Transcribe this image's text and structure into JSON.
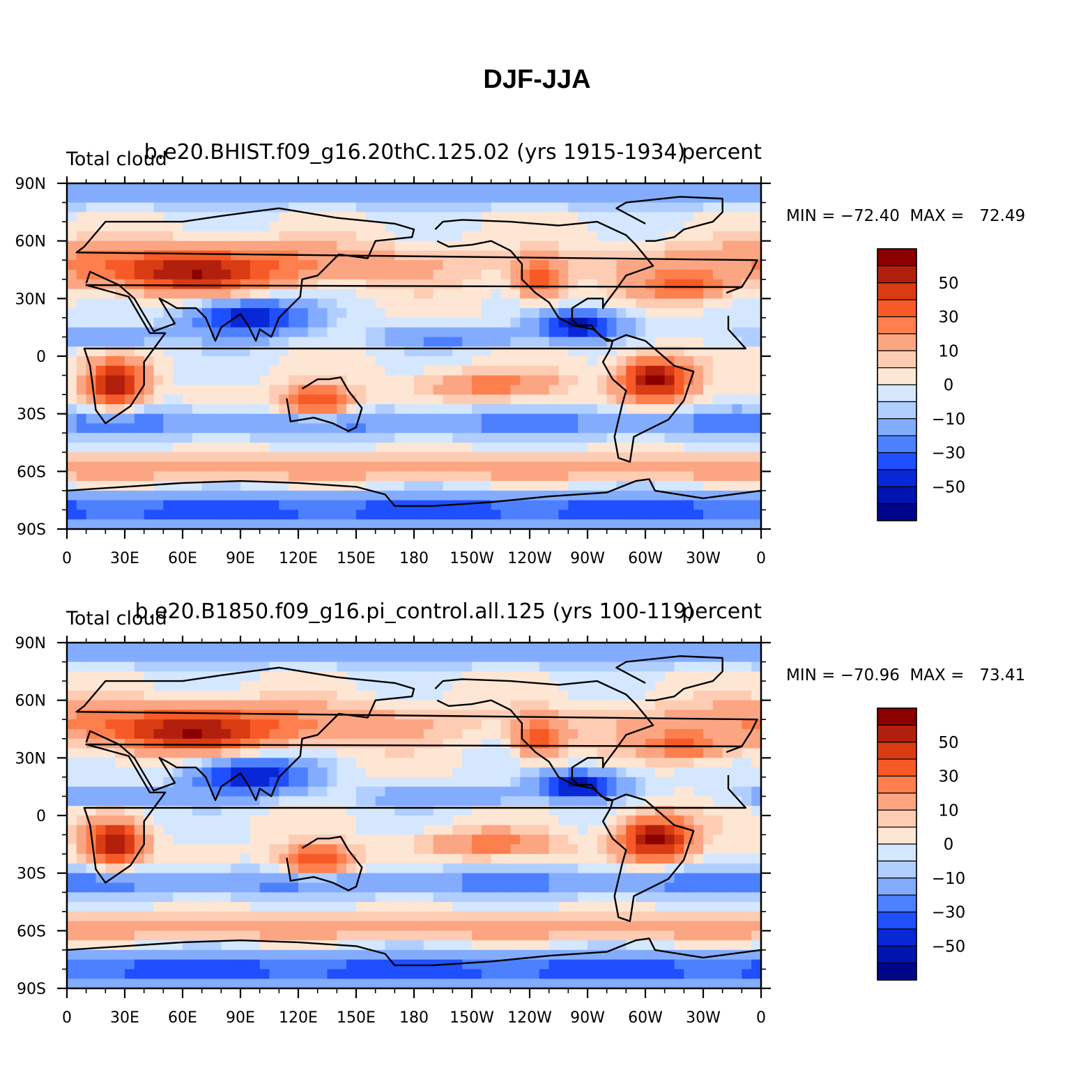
{
  "title": "DJF-JJA",
  "chart_data": [
    {
      "type": "heatmap",
      "subtitle_left": "Total cloud",
      "subtitle_center": "b.e20.BHIST.f09_g16.20thC.125.02 (yrs 1915-1934)",
      "subtitle_right": "percent",
      "stats": "MIN = −72.40  MAX =   72.49",
      "min": -72.4,
      "max": 72.49,
      "xlim": [
        0,
        360
      ],
      "ylim": [
        -90,
        90
      ],
      "x_ticks": [
        "0",
        "30E",
        "60E",
        "90E",
        "120E",
        "150E",
        "180",
        "150W",
        "120W",
        "90W",
        "60W",
        "30W",
        "0"
      ],
      "y_ticks": [
        "90N",
        "60N",
        "30N",
        "0",
        "30S",
        "60S",
        "90S"
      ],
      "colorbar_levels": [
        60,
        50,
        40,
        30,
        20,
        10,
        5,
        0,
        -5,
        -10,
        -20,
        -30,
        -40,
        -50,
        -60
      ],
      "colorbar_labels": [
        "50",
        "30",
        "10",
        "0",
        "−10",
        "−30",
        "−50"
      ],
      "colors": [
        "#8b0000",
        "#b2200d",
        "#d93b13",
        "#f75a26",
        "#fc7f4d",
        "#fba583",
        "#fdccb3",
        "#fde6d4",
        "#d4e7ff",
        "#b0ceff",
        "#83acff",
        "#4d80ff",
        "#1f4fff",
        "#0828d8",
        "#0014b0",
        "#00068a"
      ]
    },
    {
      "type": "heatmap",
      "subtitle_left": "Total cloud",
      "subtitle_center": "b.e20.B1850.f09_g16.pi_control.all.125 (yrs 100-119)",
      "subtitle_right": "percent",
      "stats": "MIN = −70.96  MAX =   73.41",
      "min": -70.96,
      "max": 73.41,
      "xlim": [
        0,
        360
      ],
      "ylim": [
        -90,
        90
      ],
      "x_ticks": [
        "0",
        "30E",
        "60E",
        "90E",
        "120E",
        "150E",
        "180",
        "150W",
        "120W",
        "90W",
        "60W",
        "30W",
        "0"
      ],
      "y_ticks": [
        "90N",
        "60N",
        "30N",
        "0",
        "30S",
        "60S",
        "90S"
      ],
      "colorbar_levels": [
        60,
        50,
        40,
        30,
        20,
        10,
        5,
        0,
        -5,
        -10,
        -20,
        -30,
        -40,
        -50,
        -60
      ],
      "colorbar_labels": [
        "50",
        "30",
        "10",
        "0",
        "−10",
        "−30",
        "−50"
      ],
      "colors": [
        "#8b0000",
        "#b2200d",
        "#d93b13",
        "#f75a26",
        "#fc7f4d",
        "#fba583",
        "#fdccb3",
        "#fde6d4",
        "#d4e7ff",
        "#b0ceff",
        "#83acff",
        "#4d80ff",
        "#1f4fff",
        "#0828d8",
        "#0014b0",
        "#00068a"
      ]
    }
  ]
}
